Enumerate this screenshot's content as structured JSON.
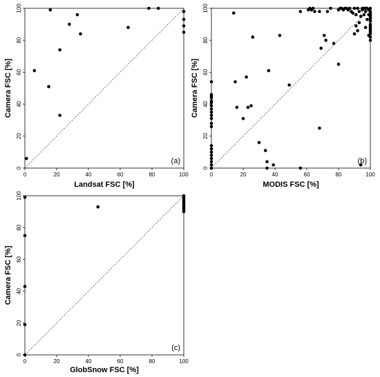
{
  "chart_data": [
    {
      "type": "scatter",
      "panel_label": "(a)",
      "xlabel": "Landsat FSC [%]",
      "ylabel": "Camera FSC [%]",
      "xlim": [
        0,
        100
      ],
      "ylim": [
        0,
        100
      ],
      "xticks": [
        0,
        20,
        40,
        60,
        80,
        100
      ],
      "yticks": [
        0,
        20,
        40,
        60,
        80,
        100
      ],
      "reference_line": "1:1 dashed",
      "grid": false,
      "points": [
        [
          1,
          6
        ],
        [
          6,
          61
        ],
        [
          15,
          51
        ],
        [
          16,
          99
        ],
        [
          22,
          74
        ],
        [
          22,
          33
        ],
        [
          28,
          90
        ],
        [
          33,
          96
        ],
        [
          35,
          84
        ],
        [
          65,
          88
        ],
        [
          78,
          100
        ],
        [
          84,
          100
        ],
        [
          100,
          98
        ],
        [
          100,
          93
        ],
        [
          100,
          89
        ],
        [
          100,
          85
        ]
      ]
    },
    {
      "type": "scatter",
      "panel_label": "(b)",
      "xlabel": "MODIS FSC [%]",
      "ylabel": "Camera FSC [%]",
      "xlim": [
        0,
        100
      ],
      "ylim": [
        0,
        100
      ],
      "xticks": [
        0,
        20,
        40,
        60,
        80,
        100
      ],
      "yticks": [
        0,
        20,
        40,
        60,
        80,
        100
      ],
      "reference_line": "1:1 dashed",
      "grid": false,
      "points": [
        [
          0,
          0
        ],
        [
          0,
          2
        ],
        [
          0,
          4
        ],
        [
          0,
          6
        ],
        [
          0,
          8
        ],
        [
          0,
          10
        ],
        [
          0,
          12
        ],
        [
          0,
          14
        ],
        [
          0,
          26
        ],
        [
          0,
          28
        ],
        [
          0,
          31
        ],
        [
          0,
          33
        ],
        [
          0,
          35
        ],
        [
          0,
          37
        ],
        [
          0,
          39
        ],
        [
          0,
          41
        ],
        [
          0,
          42
        ],
        [
          0,
          44
        ],
        [
          0,
          45
        ],
        [
          0,
          46
        ],
        [
          0,
          54
        ],
        [
          14,
          97
        ],
        [
          15,
          54
        ],
        [
          16,
          38
        ],
        [
          20,
          31
        ],
        [
          22,
          57
        ],
        [
          23,
          38
        ],
        [
          25,
          39
        ],
        [
          26,
          82
        ],
        [
          30,
          16
        ],
        [
          34,
          11
        ],
        [
          35,
          4
        ],
        [
          35,
          0
        ],
        [
          36,
          61
        ],
        [
          39,
          2
        ],
        [
          43,
          83
        ],
        [
          49,
          52
        ],
        [
          56,
          98
        ],
        [
          56,
          0
        ],
        [
          61,
          99
        ],
        [
          62,
          100
        ],
        [
          63,
          99
        ],
        [
          64,
          100
        ],
        [
          65,
          98
        ],
        [
          68,
          25
        ],
        [
          68,
          98
        ],
        [
          69,
          75
        ],
        [
          71,
          83
        ],
        [
          72,
          80
        ],
        [
          73,
          98
        ],
        [
          75,
          100
        ],
        [
          77,
          78
        ],
        [
          80,
          65
        ],
        [
          80,
          99
        ],
        [
          81,
          100
        ],
        [
          82,
          100
        ],
        [
          83,
          99
        ],
        [
          84,
          100
        ],
        [
          85,
          100
        ],
        [
          86,
          99
        ],
        [
          87,
          100
        ],
        [
          88,
          98
        ],
        [
          89,
          97
        ],
        [
          90,
          100
        ],
        [
          90,
          84
        ],
        [
          91,
          89
        ],
        [
          91,
          96
        ],
        [
          92,
          86
        ],
        [
          92,
          100
        ],
        [
          93,
          98
        ],
        [
          93,
          91
        ],
        [
          94,
          95
        ],
        [
          94,
          2
        ],
        [
          95,
          99
        ],
        [
          95,
          100
        ],
        [
          96,
          100
        ],
        [
          96,
          96
        ],
        [
          97,
          98
        ],
        [
          97,
          88
        ],
        [
          97,
          100
        ],
        [
          98,
          93
        ],
        [
          98,
          100
        ],
        [
          99,
          96
        ],
        [
          99,
          99
        ],
        [
          99,
          83
        ],
        [
          100,
          100
        ],
        [
          100,
          98
        ],
        [
          100,
          97
        ],
        [
          100,
          96
        ],
        [
          100,
          95
        ],
        [
          100,
          94
        ],
        [
          100,
          93
        ],
        [
          100,
          92
        ],
        [
          100,
          90
        ],
        [
          100,
          89
        ],
        [
          100,
          88
        ],
        [
          100,
          87
        ],
        [
          100,
          86
        ],
        [
          100,
          85
        ],
        [
          100,
          84
        ],
        [
          100,
          82
        ],
        [
          100,
          80
        ]
      ]
    },
    {
      "type": "scatter",
      "panel_label": "(c)",
      "xlabel": "GlobSnow FSC [%]",
      "ylabel": "Camera FSC [%]",
      "xlim": [
        0,
        100
      ],
      "ylim": [
        0,
        100
      ],
      "xticks": [
        0,
        20,
        40,
        60,
        80,
        100
      ],
      "yticks": [
        0,
        20,
        40,
        60,
        80,
        100
      ],
      "reference_line": "1:1 dashed",
      "grid": false,
      "points": [
        [
          0,
          99
        ],
        [
          0,
          75
        ],
        [
          0,
          43
        ],
        [
          0,
          19
        ],
        [
          0,
          0
        ],
        [
          46,
          93
        ],
        [
          100,
          100
        ],
        [
          100,
          99
        ],
        [
          100,
          98
        ],
        [
          100,
          97
        ],
        [
          100,
          96
        ],
        [
          100,
          95
        ],
        [
          100,
          94
        ],
        [
          100,
          93
        ],
        [
          100,
          92
        ],
        [
          100,
          91
        ],
        [
          100,
          90
        ]
      ]
    }
  ]
}
